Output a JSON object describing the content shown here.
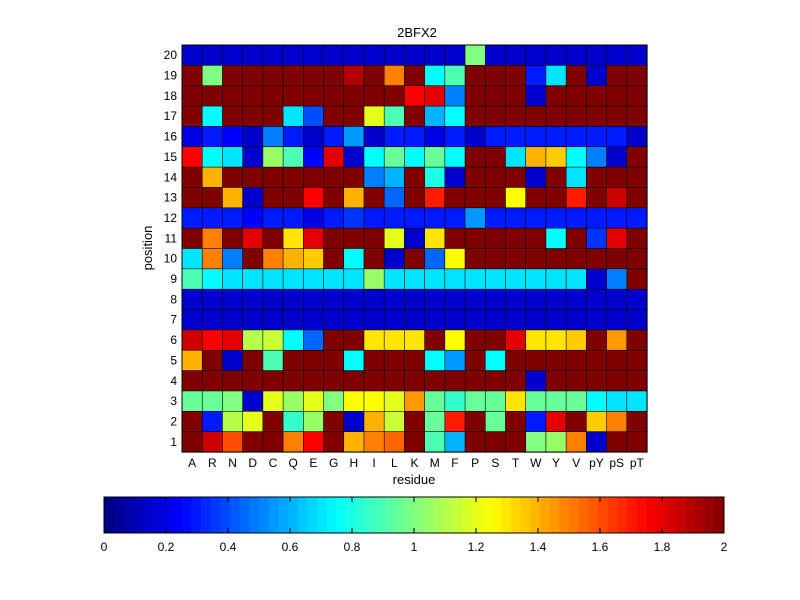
{
  "chart_data": {
    "type": "heatmap",
    "title": "2BFX2",
    "xlabel": "residue",
    "ylabel": "position",
    "x_categories": [
      "A",
      "R",
      "N",
      "D",
      "C",
      "Q",
      "E",
      "G",
      "H",
      "I",
      "L",
      "K",
      "M",
      "F",
      "P",
      "S",
      "T",
      "W",
      "Y",
      "V",
      "pY",
      "pS",
      "pT"
    ],
    "x_tick_labels": [
      "A",
      "R",
      "N",
      "D",
      "C",
      "Q",
      "E",
      "G",
      "H",
      "I",
      "L",
      "K",
      "M",
      "F",
      "P",
      "S",
      "T",
      "W",
      "Y",
      "V",
      "pY",
      "pS",
      "pT"
    ],
    "y_categories": [
      20,
      19,
      18,
      17,
      16,
      15,
      14,
      13,
      12,
      11,
      10,
      9,
      8,
      7,
      6,
      5,
      4,
      3,
      2,
      1
    ],
    "y_tick_labels": [
      "20",
      "19",
      "18",
      "17",
      "16",
      "15",
      "14",
      "13",
      "12",
      "11",
      "10",
      "9",
      "8",
      "7",
      "6",
      "5",
      "4",
      "3",
      "2",
      "1"
    ],
    "values": [
      [
        0.15,
        0.15,
        0.15,
        0.15,
        0.15,
        0.15,
        0.15,
        0.15,
        0.15,
        0.15,
        0.15,
        0.15,
        0.15,
        0.15,
        1.0,
        0.15,
        0.15,
        0.15,
        0.15,
        0.15,
        0.15,
        0.15,
        0.15
      ],
      [
        2.0,
        1.0,
        2.0,
        2.0,
        2.0,
        2.0,
        2.0,
        2.0,
        1.9,
        2.0,
        1.5,
        2.0,
        0.75,
        0.9,
        2.0,
        2.0,
        2.0,
        0.3,
        0.7,
        2.0,
        0.15,
        2.0,
        2.0
      ],
      [
        2.0,
        2.0,
        2.0,
        2.0,
        2.0,
        2.0,
        2.0,
        2.0,
        2.0,
        2.0,
        2.0,
        1.75,
        1.8,
        0.5,
        2.0,
        2.0,
        2.0,
        0.15,
        2.0,
        2.0,
        2.0,
        2.0,
        2.0
      ],
      [
        2.0,
        0.75,
        2.0,
        2.0,
        2.0,
        0.7,
        0.4,
        2.0,
        2.0,
        1.2,
        0.9,
        2.0,
        0.6,
        0.75,
        2.0,
        2.0,
        2.0,
        2.0,
        2.0,
        2.0,
        2.0,
        2.0,
        2.0
      ],
      [
        0.2,
        0.3,
        0.25,
        0.15,
        0.5,
        0.3,
        0.15,
        0.3,
        0.55,
        0.15,
        0.3,
        0.3,
        0.2,
        0.3,
        0.15,
        0.3,
        0.3,
        0.3,
        0.3,
        0.3,
        0.3,
        0.3,
        0.15
      ],
      [
        1.75,
        0.75,
        0.7,
        0.15,
        1.05,
        0.9,
        0.25,
        1.8,
        0.15,
        0.75,
        0.95,
        0.75,
        0.95,
        0.75,
        2.0,
        2.0,
        0.7,
        1.4,
        1.35,
        0.75,
        0.5,
        0.15,
        2.0
      ],
      [
        2.0,
        1.4,
        2.0,
        2.0,
        2.0,
        2.0,
        2.0,
        2.0,
        2.0,
        0.5,
        0.6,
        2.0,
        0.8,
        0.15,
        2.0,
        2.0,
        2.0,
        0.15,
        2.0,
        0.7,
        2.0,
        2.0,
        2.0
      ],
      [
        2.0,
        2.0,
        1.4,
        0.15,
        2.0,
        2.0,
        1.75,
        2.0,
        1.4,
        2.0,
        0.45,
        2.0,
        1.7,
        2.0,
        2.0,
        2.0,
        1.25,
        2.0,
        2.0,
        1.7,
        2.0,
        1.85,
        2.0
      ],
      [
        0.3,
        0.3,
        0.3,
        0.25,
        0.3,
        0.3,
        0.2,
        0.3,
        0.35,
        0.3,
        0.3,
        0.3,
        0.3,
        0.3,
        0.55,
        0.3,
        0.3,
        0.3,
        0.3,
        0.3,
        0.3,
        0.3,
        0.3
      ],
      [
        2.0,
        1.5,
        2.0,
        1.8,
        2.0,
        1.3,
        1.8,
        2.0,
        2.0,
        2.0,
        1.2,
        0.15,
        1.3,
        2.0,
        2.0,
        2.0,
        2.0,
        2.0,
        0.75,
        2.0,
        0.35,
        1.8,
        2.0
      ],
      [
        0.7,
        1.5,
        0.5,
        2.0,
        1.5,
        1.4,
        1.35,
        2.0,
        0.75,
        2.0,
        0.15,
        2.0,
        0.45,
        1.25,
        2.0,
        2.0,
        2.0,
        2.0,
        2.0,
        2.0,
        2.0,
        2.0,
        2.0
      ],
      [
        0.9,
        0.75,
        0.7,
        0.7,
        0.7,
        0.7,
        0.7,
        0.7,
        0.7,
        1.05,
        0.7,
        0.7,
        0.7,
        0.7,
        0.7,
        0.7,
        0.7,
        0.7,
        0.7,
        0.7,
        0.15,
        0.5,
        2.0
      ],
      [
        0.15,
        0.15,
        0.15,
        0.15,
        0.15,
        0.15,
        0.15,
        0.15,
        0.15,
        0.15,
        0.15,
        0.15,
        0.15,
        0.15,
        0.15,
        0.15,
        0.15,
        0.15,
        0.15,
        0.15,
        0.15,
        0.15,
        0.15
      ],
      [
        0.15,
        0.15,
        0.15,
        0.15,
        0.15,
        0.15,
        0.15,
        0.15,
        0.15,
        0.15,
        0.15,
        0.15,
        0.15,
        0.15,
        0.15,
        0.15,
        0.15,
        0.15,
        0.15,
        0.15,
        0.15,
        0.15,
        0.15
      ],
      [
        1.85,
        1.75,
        1.8,
        1.1,
        1.15,
        0.75,
        0.45,
        2.0,
        2.0,
        1.3,
        1.3,
        1.3,
        2.0,
        1.25,
        2.0,
        2.0,
        1.8,
        1.3,
        1.3,
        1.35,
        2.0,
        1.45,
        2.0
      ],
      [
        1.4,
        2.0,
        0.15,
        2.0,
        0.9,
        2.0,
        2.0,
        2.0,
        0.75,
        2.0,
        2.0,
        2.0,
        0.75,
        0.55,
        2.0,
        0.75,
        2.0,
        2.0,
        2.0,
        2.0,
        2.0,
        2.0,
        2.0
      ],
      [
        2.0,
        2.0,
        2.0,
        2.0,
        2.0,
        2.0,
        2.0,
        2.0,
        2.0,
        2.0,
        2.0,
        2.0,
        2.0,
        2.0,
        2.0,
        2.0,
        2.0,
        0.15,
        2.0,
        2.0,
        2.0,
        2.0,
        2.0
      ],
      [
        0.95,
        0.95,
        1.0,
        0.15,
        1.2,
        1.05,
        1.2,
        1.0,
        1.25,
        1.25,
        1.2,
        1.45,
        0.95,
        0.85,
        0.95,
        0.95,
        1.3,
        0.95,
        0.95,
        0.95,
        0.75,
        0.7,
        0.7
      ],
      [
        2.0,
        0.3,
        1.1,
        1.2,
        2.0,
        0.85,
        1.05,
        2.0,
        0.15,
        1.4,
        1.15,
        2.0,
        0.95,
        1.7,
        2.0,
        0.95,
        2.0,
        0.3,
        1.8,
        2.0,
        1.35,
        1.5,
        2.0
      ],
      [
        2.0,
        1.85,
        1.6,
        2.0,
        2.0,
        1.5,
        1.75,
        2.0,
        1.4,
        1.5,
        1.55,
        2.0,
        0.9,
        0.6,
        2.0,
        2.0,
        2.0,
        1.0,
        1.05,
        1.5,
        0.15,
        2.0,
        2.0
      ]
    ],
    "colorbar": {
      "colormap": "jet",
      "min": 0,
      "max": 2,
      "ticks": [
        0,
        0.2,
        0.4,
        0.6,
        0.8,
        1,
        1.2,
        1.4,
        1.6,
        1.8,
        2
      ],
      "tick_labels": [
        "0",
        "0.2",
        "0.4",
        "0.6",
        "0.8",
        "1",
        "1.2",
        "1.4",
        "1.6",
        "1.8",
        "2"
      ],
      "placement": "bottom"
    },
    "grid": false
  }
}
